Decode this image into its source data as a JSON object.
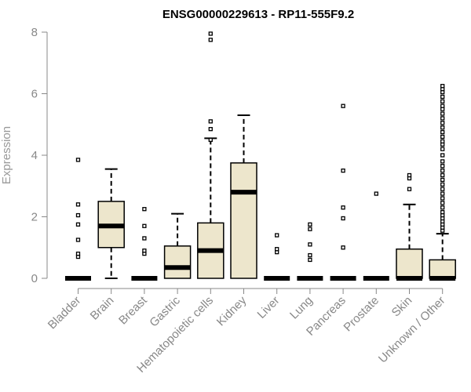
{
  "chart_data": {
    "type": "box",
    "title": "ENSG00000229613 - RP11-555F9.2",
    "xlabel": "",
    "ylabel": "Expression",
    "ylim": [
      0,
      8
    ],
    "yticks": [
      0,
      2,
      4,
      6,
      8
    ],
    "box_fill": "#ede6cc",
    "box_stroke": "#000000",
    "axis_color": "#888888",
    "categories": [
      "Bladder",
      "Brain",
      "Breast",
      "Gastric",
      "Hematopoietic cells",
      "Kidney",
      "Liver",
      "Lung",
      "Pancreas",
      "Prostate",
      "Skin",
      "Unknown / Other"
    ],
    "boxes": [
      {
        "category": "Bladder",
        "q1": 0,
        "median": 0,
        "q3": 0,
        "whisker_low": 0,
        "whisker_high": 0,
        "outliers": [
          0.7,
          0.8,
          1.25,
          1.75,
          2.05,
          2.4,
          3.85
        ]
      },
      {
        "category": "Brain",
        "q1": 1.0,
        "median": 1.7,
        "q3": 2.5,
        "whisker_low": 0,
        "whisker_high": 3.55,
        "outliers": []
      },
      {
        "category": "Breast",
        "q1": 0,
        "median": 0,
        "q3": 0,
        "whisker_low": 0,
        "whisker_high": 0,
        "outliers": [
          0.8,
          0.9,
          1.3,
          1.7,
          2.25
        ]
      },
      {
        "category": "Gastric",
        "q1": 0,
        "median": 0.35,
        "q3": 1.05,
        "whisker_low": 0,
        "whisker_high": 2.1,
        "outliers": []
      },
      {
        "category": "Hematopoietic cells",
        "q1": 0,
        "median": 0.9,
        "q3": 1.8,
        "whisker_low": 0,
        "whisker_high": 4.55,
        "outliers": [
          4.5,
          4.85,
          5.1,
          7.75,
          7.95
        ]
      },
      {
        "category": "Kidney",
        "q1": 0,
        "median": 2.8,
        "q3": 3.75,
        "whisker_low": 0,
        "whisker_high": 5.3,
        "outliers": []
      },
      {
        "category": "Liver",
        "q1": 0,
        "median": 0,
        "q3": 0,
        "whisker_low": 0,
        "whisker_high": 0,
        "outliers": [
          0.85,
          0.95,
          1.4
        ]
      },
      {
        "category": "Lung",
        "q1": 0,
        "median": 0,
        "q3": 0,
        "whisker_low": 0,
        "whisker_high": 0,
        "outliers": [
          0.6,
          0.75,
          1.1,
          1.6,
          1.75
        ]
      },
      {
        "category": "Pancreas",
        "q1": 0,
        "median": 0,
        "q3": 0,
        "whisker_low": 0,
        "whisker_high": 0,
        "outliers": [
          1.0,
          1.95,
          2.3,
          3.5,
          5.6
        ]
      },
      {
        "category": "Prostate",
        "q1": 0,
        "median": 0,
        "q3": 0,
        "whisker_low": 0,
        "whisker_high": 0,
        "outliers": [
          2.75
        ]
      },
      {
        "category": "Skin",
        "q1": 0,
        "median": 0,
        "q3": 0.95,
        "whisker_low": 0,
        "whisker_high": 2.4,
        "outliers": [
          2.9,
          3.25,
          3.35
        ]
      },
      {
        "category": "Unknown / Other",
        "q1": 0,
        "median": 0,
        "q3": 0.6,
        "whisker_low": 0,
        "whisker_high": 1.45,
        "outliers": [
          1.55,
          1.65,
          1.75,
          1.85,
          1.95,
          2.05,
          2.15,
          2.3,
          2.45,
          2.6,
          2.75,
          2.9,
          3.05,
          3.2,
          3.35,
          3.5,
          3.65,
          3.8,
          4.0,
          4.2,
          4.35,
          4.45,
          4.6,
          4.75,
          4.9,
          5.05,
          5.2,
          5.35,
          5.5,
          5.6,
          5.75,
          5.9,
          6.05,
          6.15,
          6.25
        ]
      }
    ]
  }
}
